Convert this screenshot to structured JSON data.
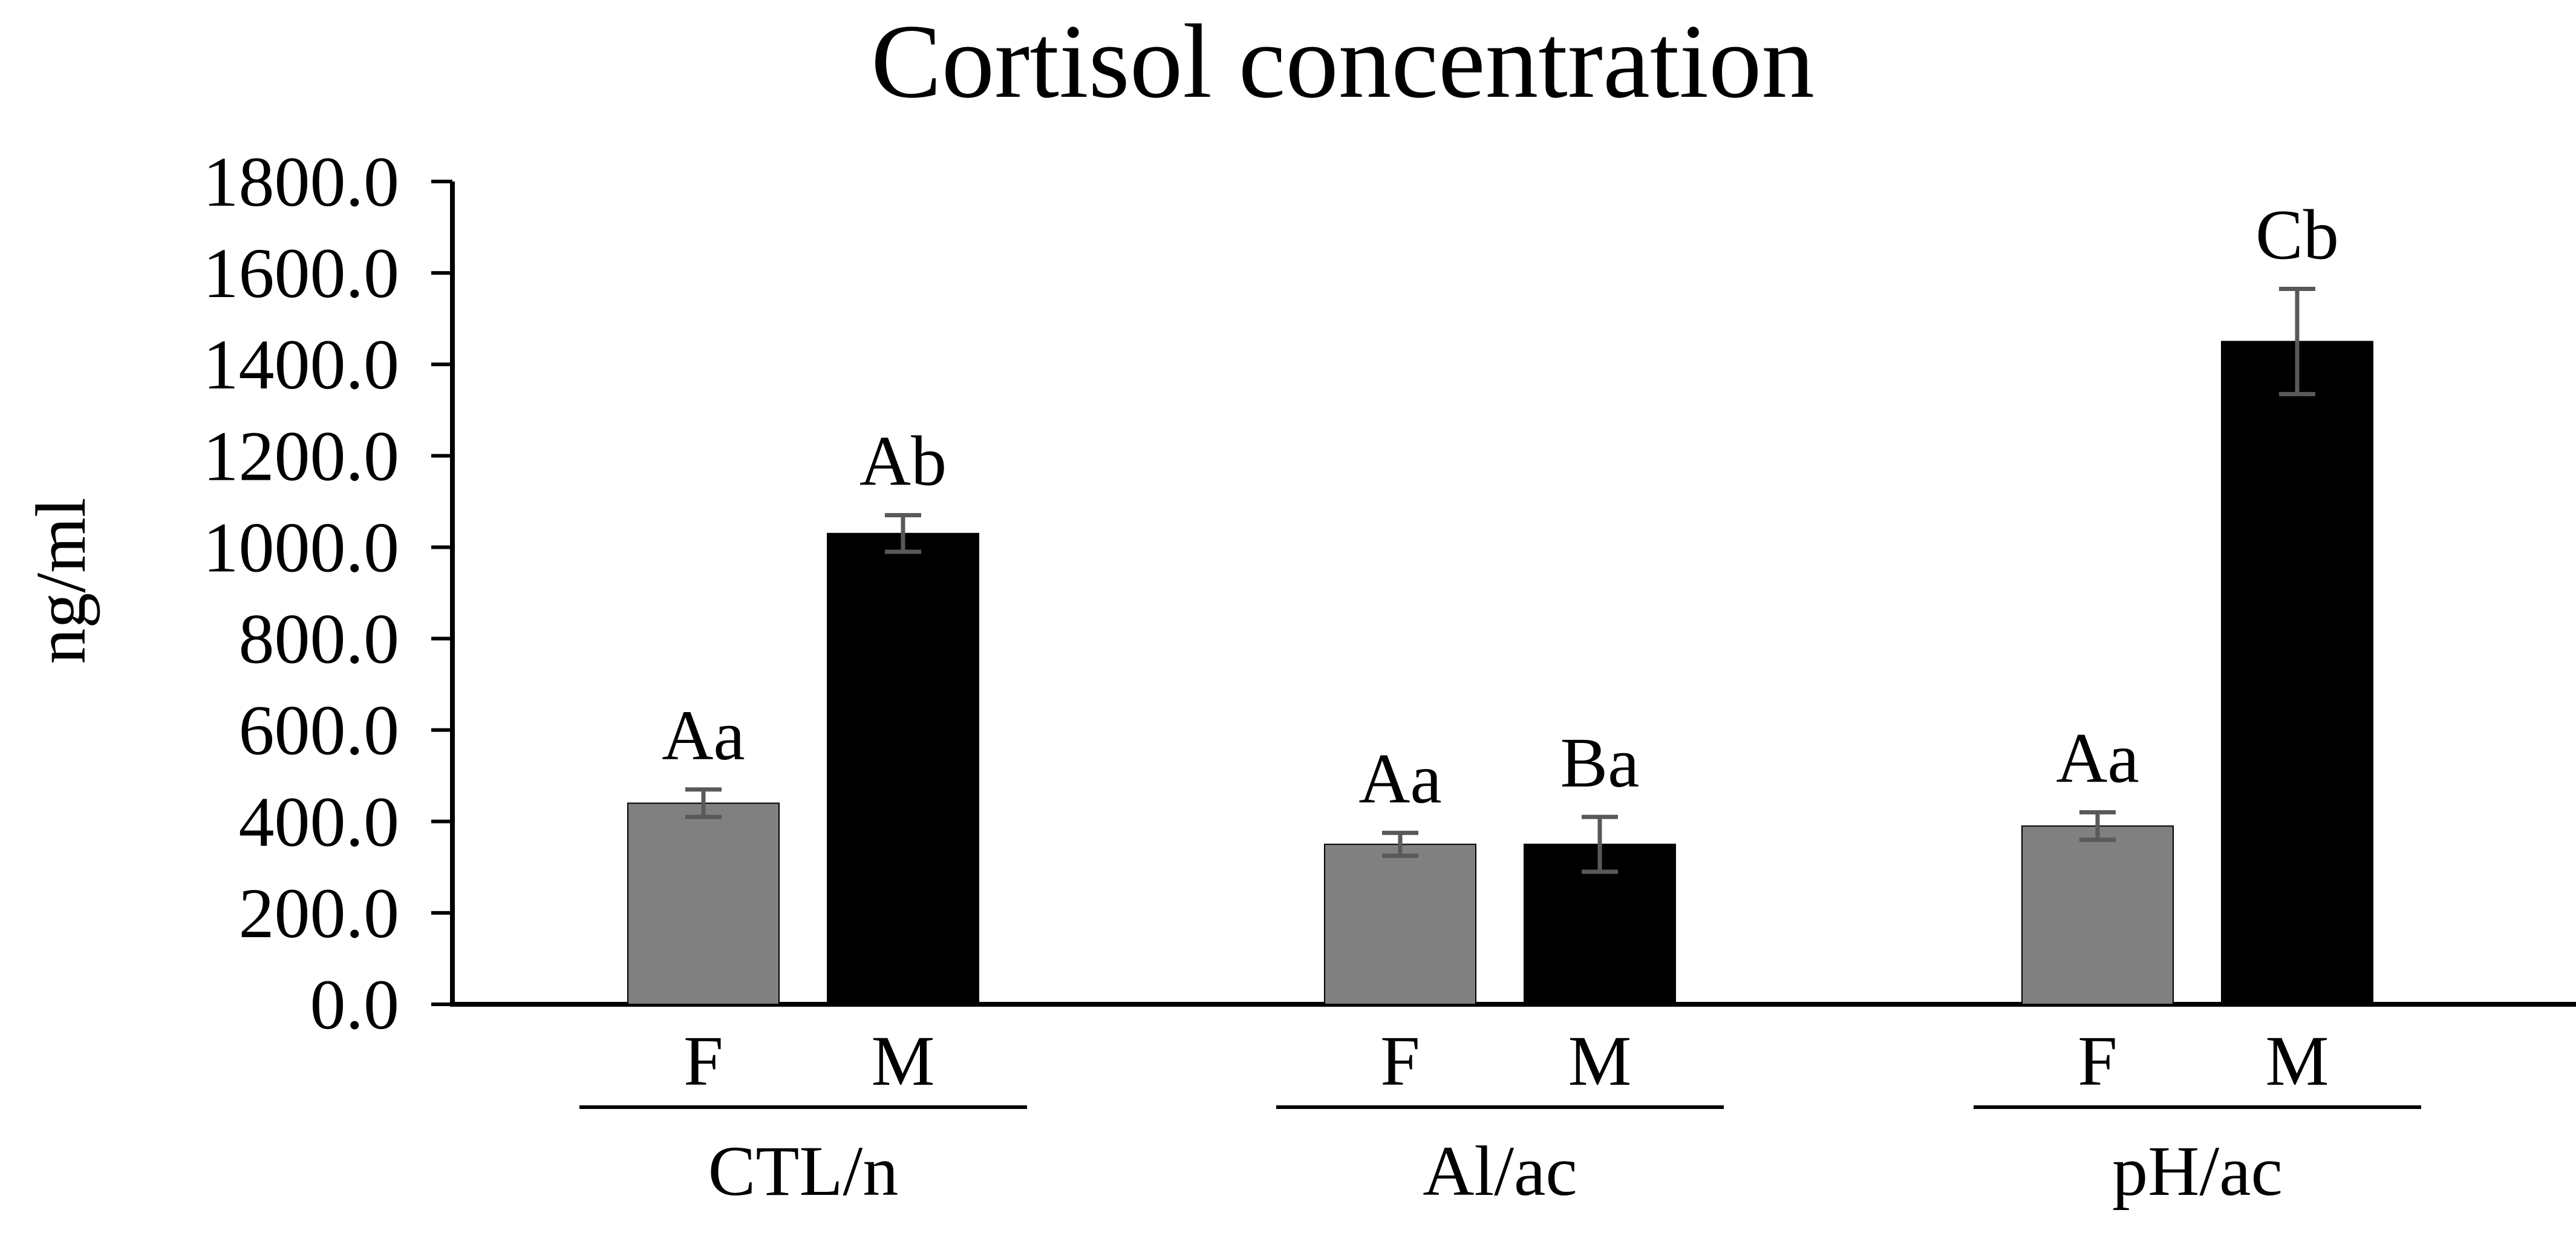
{
  "chart_data": {
    "type": "bar",
    "title": "Cortisol concentration",
    "ylabel": "ng/ml",
    "xlabel": "",
    "ylim": [
      0,
      1800
    ],
    "yticks": [
      "0.0",
      "200.0",
      "400.0",
      "600.0",
      "800.0",
      "1000.0",
      "1200.0",
      "1400.0",
      "1600.0",
      "1800.0"
    ],
    "grid": false,
    "legend": "none",
    "groups": [
      {
        "label": "CTL/n",
        "bars": [
          {
            "category": "F",
            "value": 440,
            "error": 30,
            "annotation": "Aa",
            "color": "#808080"
          },
          {
            "category": "M",
            "value": 1030,
            "error": 40,
            "annotation": "Ab",
            "color": "#000000"
          }
        ]
      },
      {
        "label": "Al/ac",
        "bars": [
          {
            "category": "F",
            "value": 350,
            "error": 25,
            "annotation": "Aa",
            "color": "#808080"
          },
          {
            "category": "M",
            "value": 350,
            "error": 60,
            "annotation": "Ba",
            "color": "#000000"
          }
        ]
      },
      {
        "label": "pH/ac",
        "bars": [
          {
            "category": "F",
            "value": 390,
            "error": 30,
            "annotation": "Aa",
            "color": "#808080"
          },
          {
            "category": "M",
            "value": 1450,
            "error": 115,
            "annotation": "Cb",
            "color": "#000000"
          }
        ]
      }
    ]
  }
}
